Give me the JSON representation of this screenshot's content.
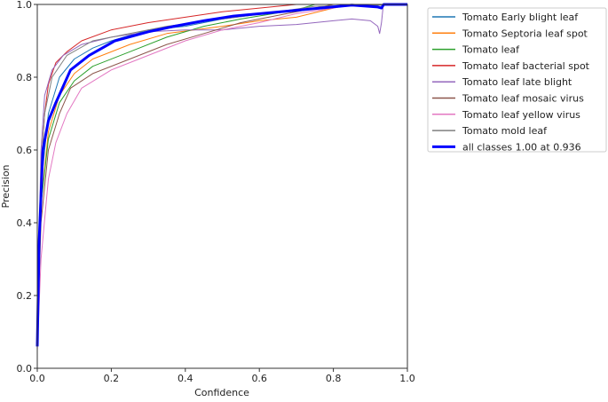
{
  "chart_data": {
    "type": "line",
    "title": "",
    "xlabel": "Confidence",
    "ylabel": "Precision",
    "xlim": [
      0,
      1
    ],
    "ylim": [
      0,
      1
    ],
    "xticks": [
      "0.0",
      "0.2",
      "0.4",
      "0.6",
      "0.8",
      "1.0"
    ],
    "yticks": [
      "0.0",
      "0.2",
      "0.4",
      "0.6",
      "0.8",
      "1.0"
    ],
    "grid": false,
    "legend_position": "outside-top-right",
    "series": [
      {
        "name": "Tomato Early blight leaf",
        "color": "#1f77b4",
        "x": [
          0,
          0.01,
          0.03,
          0.06,
          0.1,
          0.15,
          0.2,
          0.3,
          0.4,
          0.5,
          0.65,
          0.8,
          1.0
        ],
        "y": [
          0.1,
          0.5,
          0.7,
          0.8,
          0.85,
          0.88,
          0.9,
          0.93,
          0.94,
          0.96,
          0.98,
          0.995,
          1.0
        ]
      },
      {
        "name": "Tomato Septoria leaf spot",
        "color": "#ff7f0e",
        "x": [
          0,
          0.01,
          0.03,
          0.06,
          0.1,
          0.15,
          0.25,
          0.35,
          0.5,
          0.6,
          0.7,
          0.8,
          0.85,
          1.0
        ],
        "y": [
          0.08,
          0.45,
          0.65,
          0.75,
          0.81,
          0.85,
          0.89,
          0.92,
          0.94,
          0.955,
          0.965,
          0.99,
          1.0,
          1.0
        ]
      },
      {
        "name": "Tomato leaf",
        "color": "#2ca02c",
        "x": [
          0,
          0.01,
          0.03,
          0.06,
          0.1,
          0.15,
          0.25,
          0.35,
          0.45,
          0.55,
          0.7,
          0.75,
          1.0
        ],
        "y": [
          0.08,
          0.45,
          0.63,
          0.73,
          0.79,
          0.83,
          0.87,
          0.91,
          0.94,
          0.96,
          0.985,
          1.0,
          1.0
        ]
      },
      {
        "name": "Tomato leaf bacterial spot",
        "color": "#d62728",
        "x": [
          0,
          0.01,
          0.02,
          0.03,
          0.05,
          0.08,
          0.12,
          0.2,
          0.3,
          0.4,
          0.5,
          0.6,
          0.7,
          1.0
        ],
        "y": [
          0.1,
          0.55,
          0.7,
          0.78,
          0.84,
          0.87,
          0.9,
          0.93,
          0.95,
          0.965,
          0.98,
          0.99,
          1.0,
          1.0
        ]
      },
      {
        "name": "Tomato leaf late blight",
        "color": "#9467bd",
        "x": [
          0,
          0.01,
          0.02,
          0.04,
          0.07,
          0.12,
          0.2,
          0.3,
          0.4,
          0.5,
          0.6,
          0.7,
          0.8,
          0.85,
          0.9,
          0.92,
          0.925,
          0.93,
          0.935,
          1.0
        ],
        "y": [
          0.1,
          0.6,
          0.75,
          0.82,
          0.86,
          0.89,
          0.91,
          0.925,
          0.93,
          0.93,
          0.94,
          0.945,
          0.955,
          0.96,
          0.955,
          0.94,
          0.92,
          0.95,
          1.0,
          1.0
        ]
      },
      {
        "name": "Tomato leaf mosaic virus",
        "color": "#8c564b",
        "x": [
          0,
          0.01,
          0.03,
          0.06,
          0.09,
          0.15,
          0.25,
          0.35,
          0.45,
          0.55,
          0.7,
          0.8,
          1.0
        ],
        "y": [
          0.08,
          0.4,
          0.6,
          0.7,
          0.77,
          0.81,
          0.85,
          0.89,
          0.92,
          0.95,
          0.98,
          1.0,
          1.0
        ]
      },
      {
        "name": "Tomato leaf yellow virus",
        "color": "#e377c2",
        "x": [
          0,
          0.01,
          0.03,
          0.05,
          0.08,
          0.12,
          0.2,
          0.3,
          0.4,
          0.5,
          0.6,
          0.7,
          0.8,
          0.85,
          1.0
        ],
        "y": [
          0.05,
          0.3,
          0.52,
          0.62,
          0.7,
          0.77,
          0.82,
          0.86,
          0.9,
          0.93,
          0.95,
          0.975,
          0.99,
          1.0,
          1.0
        ]
      },
      {
        "name": "Tomato mold leaf",
        "color": "#7f7f7f",
        "x": [
          0,
          0.01,
          0.02,
          0.04,
          0.08,
          0.15,
          0.25,
          0.35,
          0.5,
          0.65,
          0.75,
          1.0
        ],
        "y": [
          0.1,
          0.55,
          0.7,
          0.8,
          0.86,
          0.9,
          0.92,
          0.94,
          0.96,
          0.98,
          0.995,
          1.0
        ]
      },
      {
        "name": "all classes 1.00 at 0.936",
        "color": "#0000ff",
        "bold": true,
        "x": [
          0,
          0.005,
          0.015,
          0.03,
          0.05,
          0.09,
          0.14,
          0.21,
          0.3,
          0.37,
          0.45,
          0.53,
          0.69,
          0.85,
          0.92,
          0.93,
          0.936,
          1.0
        ],
        "y": [
          0.06,
          0.35,
          0.6,
          0.68,
          0.73,
          0.82,
          0.86,
          0.9,
          0.925,
          0.94,
          0.955,
          0.968,
          0.983,
          0.998,
          0.993,
          0.99,
          1.0,
          1.0
        ]
      }
    ]
  }
}
